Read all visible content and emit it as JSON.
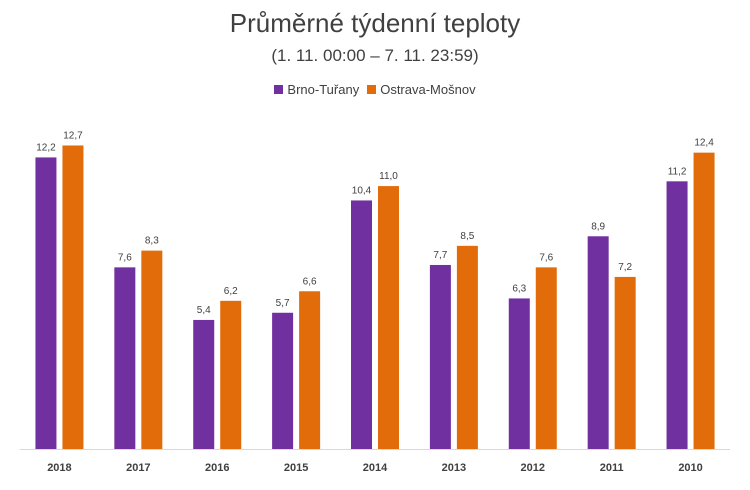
{
  "chart_data": {
    "type": "bar",
    "title": "Průměrné týdenní teploty",
    "subtitle": "(1. 11. 00:00 – 7. 11. 23:59)",
    "categories": [
      "2018",
      "2017",
      "2016",
      "2015",
      "2014",
      "2013",
      "2012",
      "2011",
      "2010"
    ],
    "series": [
      {
        "name": "Brno-Tuřany",
        "color": "#7030a0",
        "values": [
          12.2,
          7.6,
          5.4,
          5.7,
          10.4,
          7.7,
          6.3,
          8.9,
          11.2
        ],
        "labels": [
          "12,2",
          "7,6",
          "5,4",
          "5,7",
          "10,4",
          "7,7",
          "6,3",
          "8,9",
          "11,2"
        ]
      },
      {
        "name": "Ostrava-Mošnov",
        "color": "#e36c0a",
        "values": [
          12.7,
          8.3,
          6.2,
          6.6,
          11.0,
          8.5,
          7.6,
          7.2,
          12.4
        ],
        "labels": [
          "12,7",
          "8,3",
          "6,2",
          "6,6",
          "11,0",
          "8,5",
          "7,6",
          "7,2",
          "12,4"
        ]
      }
    ],
    "ylim": [
      0,
      13.5
    ],
    "grid": false,
    "legend_position": "top"
  }
}
